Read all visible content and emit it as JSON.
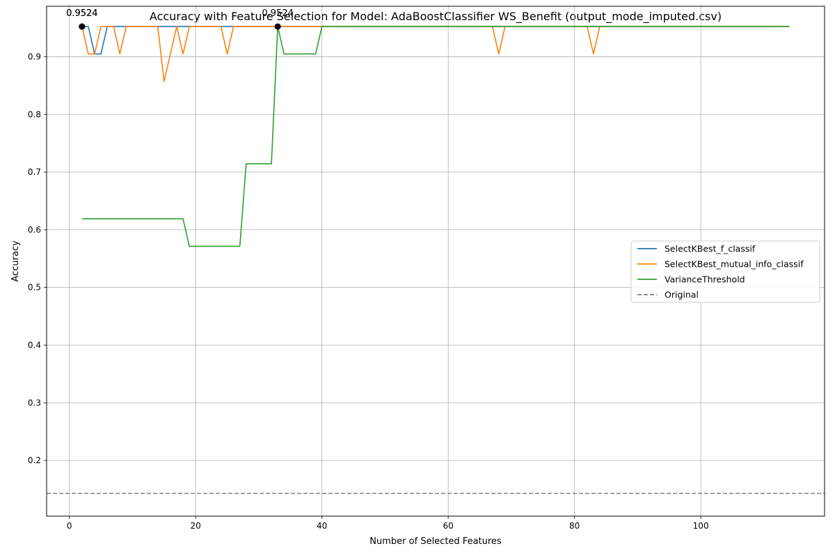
{
  "chart_data": {
    "type": "line",
    "title": "Accuracy with Feature Selection for Model: AdaBoostClassifier WS_Benefit (output_mode_imputed.csv)",
    "xlabel": "Number of Selected Features",
    "ylabel": "Accuracy",
    "xlim": [
      -3.6,
      119.6
    ],
    "ylim": [
      0.1035,
      0.9875
    ],
    "xticks": [
      0,
      20,
      40,
      60,
      80,
      100
    ],
    "yticks": [
      0.2,
      0.3,
      0.4,
      0.5,
      0.6,
      0.7,
      0.8,
      0.9
    ],
    "xtick_labels": [
      "0",
      "20",
      "40",
      "60",
      "80",
      "100"
    ],
    "ytick_labels": [
      "0.2",
      "0.3",
      "0.4",
      "0.5",
      "0.6",
      "0.7",
      "0.8",
      "0.9"
    ],
    "grid": true,
    "legend_position": "center-right",
    "series": [
      {
        "name": "SelectKBest_f_classif",
        "color": "#1f77b4",
        "style": "solid",
        "x": [
          2,
          3,
          4,
          5,
          6,
          114
        ],
        "y": [
          0.9524,
          0.9524,
          0.9048,
          0.9048,
          0.9524,
          0.9524
        ]
      },
      {
        "name": "SelectKBest_mutual_info_classif",
        "color": "#ff7f0e",
        "style": "solid",
        "x": [
          2,
          3,
          4,
          5,
          7,
          8,
          9,
          14,
          15,
          16,
          17,
          18,
          19,
          24,
          25,
          26,
          67,
          68,
          69,
          82,
          83,
          84,
          114
        ],
        "y": [
          0.9524,
          0.9048,
          0.9048,
          0.9524,
          0.9524,
          0.9048,
          0.9524,
          0.9524,
          0.8571,
          0.9048,
          0.9524,
          0.9048,
          0.9524,
          0.9524,
          0.9048,
          0.9524,
          0.9524,
          0.9048,
          0.9524,
          0.9524,
          0.9048,
          0.9524,
          0.9524
        ]
      },
      {
        "name": "VarianceThreshold",
        "color": "#2ca02c",
        "style": "solid",
        "x": [
          2,
          18,
          19,
          27,
          28,
          32,
          33,
          34,
          39,
          40,
          114
        ],
        "y": [
          0.619,
          0.619,
          0.5714,
          0.5714,
          0.7143,
          0.7143,
          0.9524,
          0.9048,
          0.9048,
          0.9524,
          0.9524
        ]
      },
      {
        "name": "Original",
        "color": "#808080",
        "style": "dashed",
        "hline": 0.1429
      }
    ],
    "annotations": [
      {
        "x": 2,
        "y": 0.9524,
        "text": "0.9524"
      },
      {
        "x": 2,
        "y": 0.9524,
        "text": "0.9524"
      },
      {
        "x": 33,
        "y": 0.9524,
        "text": "0.9524"
      }
    ]
  }
}
